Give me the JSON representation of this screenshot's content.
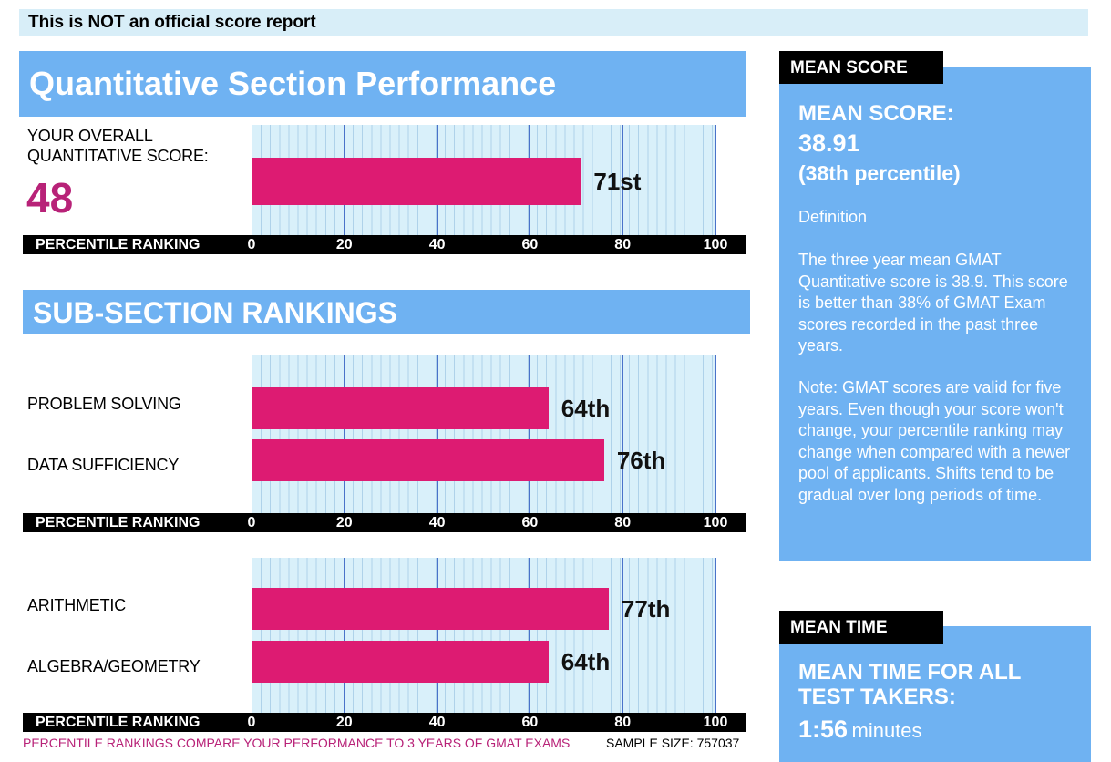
{
  "banner": "This is NOT an official score report",
  "quant_section": {
    "title": "Quantitative Section Performance",
    "overall_label_line1": "YOUR OVERALL",
    "overall_label_line2": "QUANTITATIVE SCORE:",
    "overall_score": "48"
  },
  "sub_section": {
    "title": "SUB-SECTION RANKINGS"
  },
  "axis_title": "PERCENTILE RANKING",
  "footer": {
    "note": "PERCENTILE RANKINGS COMPARE YOUR PERFORMANCE TO 3 YEARS OF GMAT EXAMS",
    "sample_size": "SAMPLE SIZE: 757037"
  },
  "colors": {
    "bar": "#dd1b72",
    "panel": "#6fb2f2",
    "score": "#b82278"
  },
  "chart_data": [
    {
      "type": "bar",
      "orientation": "horizontal",
      "categories": [
        ""
      ],
      "values": [
        71
      ],
      "data_labels": [
        "71st"
      ],
      "xlabel": "PERCENTILE RANKING",
      "xlim": [
        0,
        100
      ],
      "xticks": [
        0,
        20,
        40,
        60,
        80,
        100
      ]
    },
    {
      "type": "bar",
      "orientation": "horizontal",
      "categories": [
        "PROBLEM SOLVING",
        "DATA SUFFICIENCY"
      ],
      "values": [
        64,
        76
      ],
      "data_labels": [
        "64th",
        "76th"
      ],
      "xlabel": "PERCENTILE RANKING",
      "xlim": [
        0,
        100
      ],
      "xticks": [
        0,
        20,
        40,
        60,
        80,
        100
      ]
    },
    {
      "type": "bar",
      "orientation": "horizontal",
      "categories": [
        "ARITHMETIC",
        "ALGEBRA/GEOMETRY"
      ],
      "values": [
        77,
        64
      ],
      "data_labels": [
        "77th",
        "64th"
      ],
      "xlabel": "PERCENTILE RANKING",
      "xlim": [
        0,
        100
      ],
      "xticks": [
        0,
        20,
        40,
        60,
        80,
        100
      ]
    }
  ],
  "mean_score": {
    "tab": "MEAN SCORE",
    "heading": "MEAN SCORE:",
    "value": "38.91",
    "percentile": "(38th percentile)",
    "definition_label": "Definition",
    "definition_text": "The three year mean GMAT Quantitative score is 38.9. This score is better than 38% of GMAT Exam scores recorded in the past three years.",
    "note_text": "Note:  GMAT scores are valid for five years. Even though your score won't change, your percentile ranking may change when compared with a newer pool of applicants.  Shifts tend to be gradual over long periods of time."
  },
  "mean_time": {
    "tab": "MEAN TIME",
    "heading_line1": "MEAN TIME FOR ALL",
    "heading_line2": "TEST TAKERS:",
    "value": "1:56",
    "unit": "minutes"
  }
}
